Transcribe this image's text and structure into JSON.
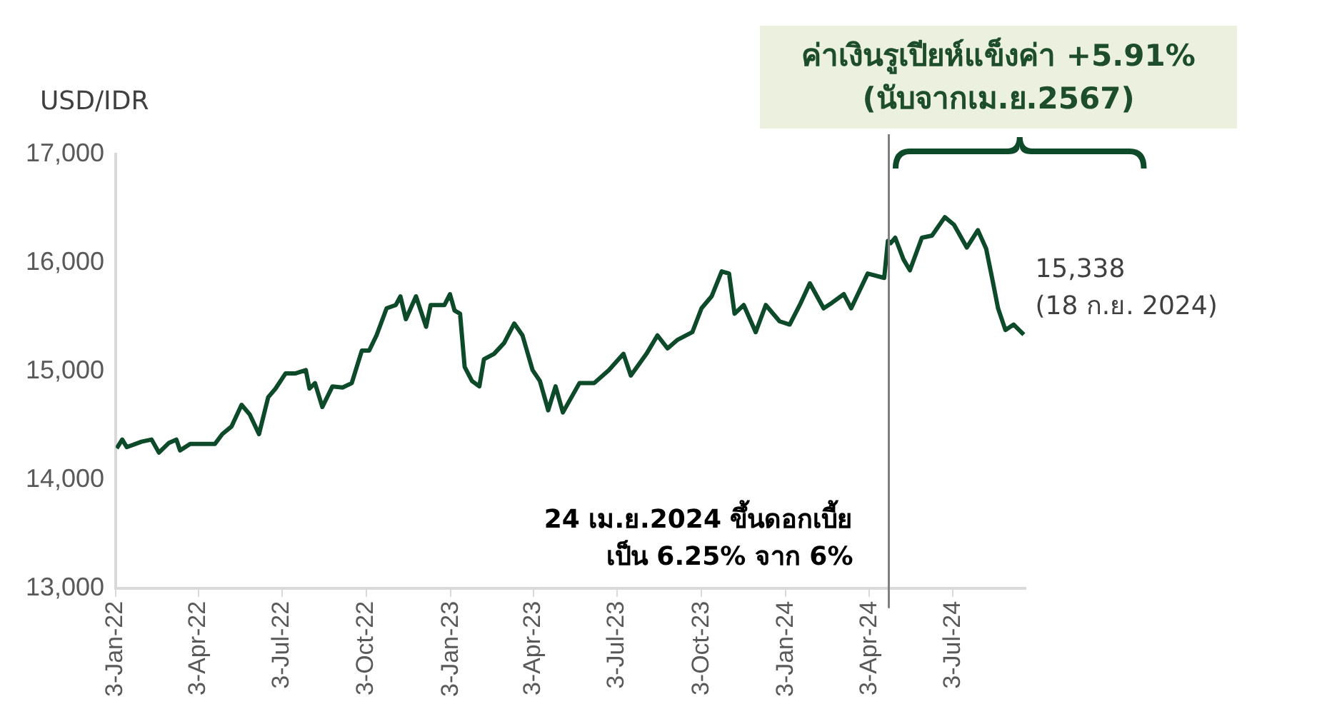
{
  "chart_data": {
    "type": "line",
    "title": "ค่าเงินรูเปียห์แข็งค่า +5.91%\n(นับจากเม.ย.2567)",
    "ylabel": "USD/IDR",
    "x": [
      "2022-01-04",
      "2022-01-10",
      "2022-01-15",
      "2022-01-31",
      "2022-02-11",
      "2022-02-19",
      "2022-03-02",
      "2022-03-10",
      "2022-03-14",
      "2022-03-25",
      "2022-04-21",
      "2022-04-29",
      "2022-05-09",
      "2022-05-20",
      "2022-05-29",
      "2022-06-08",
      "2022-06-18",
      "2022-06-26",
      "2022-07-07",
      "2022-07-18",
      "2022-07-29",
      "2022-08-02",
      "2022-08-08",
      "2022-08-16",
      "2022-08-27",
      "2022-09-07",
      "2022-09-17",
      "2022-09-28",
      "2022-10-06",
      "2022-10-14",
      "2022-10-25",
      "2022-11-04",
      "2022-11-09",
      "2022-11-15",
      "2022-11-26",
      "2022-12-07",
      "2022-12-12",
      "2022-12-27",
      "2023-01-02",
      "2023-01-07",
      "2023-01-13",
      "2023-01-18",
      "2023-01-26",
      "2023-02-03",
      "2023-02-08",
      "2023-02-19",
      "2023-03-02",
      "2023-03-13",
      "2023-03-22",
      "2023-04-02",
      "2023-04-10",
      "2023-04-19",
      "2023-04-27",
      "2023-05-05",
      "2023-05-23",
      "2023-06-08",
      "2023-06-24",
      "2023-07-10",
      "2023-07-18",
      "2023-08-04",
      "2023-08-16",
      "2023-08-27",
      "2023-09-07",
      "2023-09-23",
      "2023-10-03",
      "2023-10-14",
      "2023-10-25",
      "2023-11-02",
      "2023-11-08",
      "2023-11-18",
      "2023-12-01",
      "2023-12-12",
      "2023-12-27",
      "2024-01-07",
      "2024-01-18",
      "2024-01-29",
      "2024-02-13",
      "2024-02-22",
      "2024-03-06",
      "2024-03-14",
      "2024-04-01",
      "2024-04-19",
      "2024-04-23",
      "2024-04-26",
      "2024-05-01",
      "2024-05-10",
      "2024-05-17",
      "2024-05-30",
      "2024-06-10",
      "2024-06-24",
      "2024-07-04",
      "2024-07-18",
      "2024-07-30",
      "2024-08-08",
      "2024-08-14",
      "2024-08-21",
      "2024-08-29",
      "2024-09-07",
      "2024-09-18"
    ],
    "series": [
      {
        "color": "#0d4a2a",
        "values": [
          14290,
          14370,
          14300,
          14350,
          14370,
          14250,
          14340,
          14370,
          14270,
          14330,
          14330,
          14420,
          14490,
          14690,
          14600,
          14420,
          14760,
          14840,
          14980,
          14980,
          15010,
          14840,
          14890,
          14670,
          14860,
          14850,
          14890,
          15190,
          15190,
          15330,
          15580,
          15610,
          15690,
          15480,
          15690,
          15410,
          15610,
          15610,
          15710,
          15560,
          15530,
          15040,
          14910,
          14860,
          15110,
          15160,
          15260,
          15440,
          15330,
          15010,
          14910,
          14640,
          14860,
          14620,
          14890,
          14890,
          15010,
          15160,
          14960,
          15160,
          15330,
          15210,
          15290,
          15360,
          15580,
          15690,
          15920,
          15900,
          15530,
          15610,
          15360,
          15610,
          15460,
          15430,
          15610,
          15810,
          15580,
          15630,
          15710,
          15580,
          15900,
          15860,
          16200,
          16180,
          16230,
          16030,
          15930,
          16230,
          16250,
          16420,
          16350,
          16140,
          16300,
          16130,
          15880,
          15580,
          15380,
          15430,
          15338
        ]
      }
    ],
    "xlim": [
      "2022-01-03",
      "2024-09-20"
    ],
    "xticks": [
      {
        "value": "2022-01-03",
        "label": "3-Jan-22"
      },
      {
        "value": "2022-04-03",
        "label": "3-Apr-22"
      },
      {
        "value": "2022-07-03",
        "label": "3-Jul-22"
      },
      {
        "value": "2022-10-03",
        "label": "3-Oct-22"
      },
      {
        "value": "2023-01-03",
        "label": "3-Jan-23"
      },
      {
        "value": "2023-04-03",
        "label": "3-Apr-23"
      },
      {
        "value": "2023-07-03",
        "label": "3-Jul-23"
      },
      {
        "value": "2023-10-03",
        "label": "3-Oct-23"
      },
      {
        "value": "2024-01-03",
        "label": "3-Jan-24"
      },
      {
        "value": "2024-04-03",
        "label": "3-Apr-24"
      },
      {
        "value": "2024-07-03",
        "label": "3-Jul-24"
      }
    ],
    "ylim": [
      13000,
      17000
    ],
    "yticks": [
      {
        "value": 13000,
        "label": "13,000"
      },
      {
        "value": 14000,
        "label": "14,000"
      },
      {
        "value": 15000,
        "label": "15,000"
      },
      {
        "value": 16000,
        "label": "16,000"
      },
      {
        "value": 17000,
        "label": "17,000"
      }
    ],
    "ref_lines": [
      {
        "axis": "x",
        "value": "2024-04-24",
        "label": "24 เม.ย.2024 ขึ้นดอกเบี้ย\nเป็น 6.25% จาก 6%",
        "color": "#7f7f7f"
      }
    ],
    "annotations": [
      {
        "text": "15,338\n(18 ก.ย. 2024)",
        "x": "2024-09-18",
        "y": 15338
      }
    ]
  }
}
